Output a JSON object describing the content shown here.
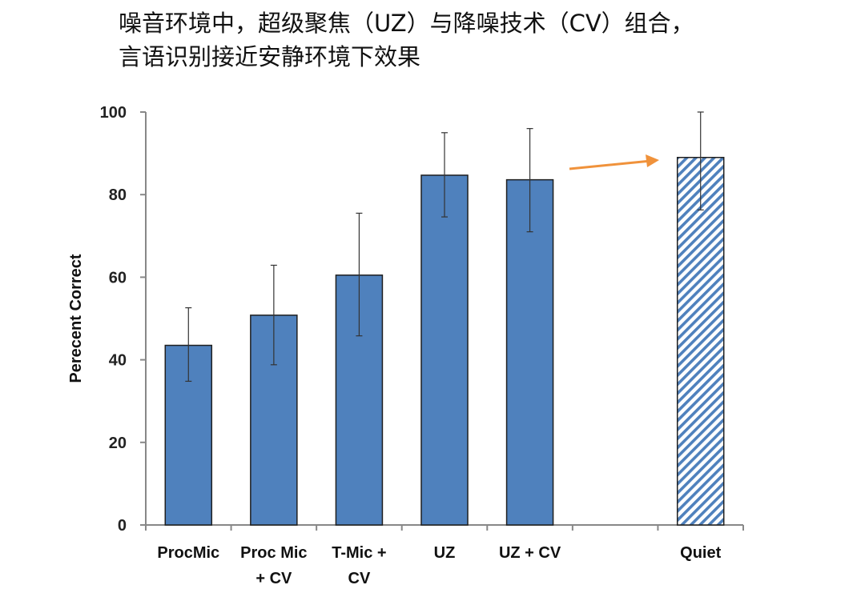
{
  "title": {
    "line1": "噪音环境中，超级聚焦（UZ）与降噪技术（CV）组合，",
    "line2": "言语识别接近安静环境下效果"
  },
  "chart_data": {
    "type": "bar",
    "categories": [
      [
        "ProcMic"
      ],
      [
        "Proc Mic",
        "+ CV"
      ],
      [
        "T-Mic +",
        "CV"
      ],
      [
        "UZ"
      ],
      [
        "UZ + CV"
      ],
      [
        ""
      ],
      [
        "Quiet"
      ]
    ],
    "values": [
      43.5,
      50.8,
      60.5,
      84.7,
      83.6,
      null,
      89.0
    ],
    "error_low": [
      34.8,
      38.8,
      45.8,
      74.6,
      71.0,
      null,
      76.3
    ],
    "error_high": [
      52.6,
      62.9,
      75.5,
      95.0,
      96.0,
      null,
      100
    ],
    "patterns": [
      "solid",
      "solid",
      "solid",
      "solid",
      "solid",
      "none",
      "hatched"
    ],
    "ylabel": "Perecent Correct",
    "ylim": [
      0,
      100
    ],
    "yticks": [
      0,
      20,
      40,
      60,
      80,
      100
    ],
    "colors": {
      "bar": "#4f81bd",
      "bar_edge": "#1f1f1f",
      "arrow": "#f0923b",
      "axis": "#888888"
    },
    "annotation": "arrow pointing from UZ + CV toward Quiet bar",
    "grid": false
  }
}
